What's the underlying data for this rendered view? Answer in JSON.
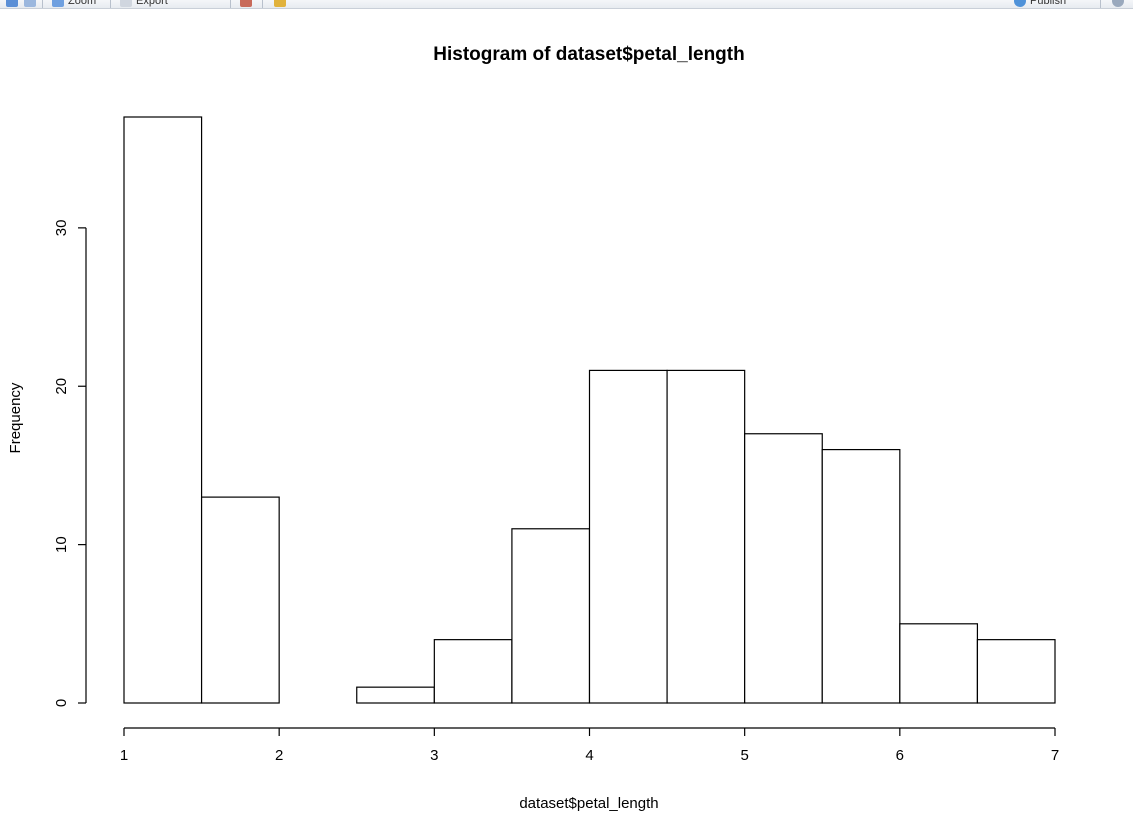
{
  "toolbar": {
    "zoom_label": "Zoom",
    "export_label": "Export",
    "publish_label": "Publish",
    "back_icon": "arrow-left-icon",
    "forward_icon": "arrow-right-icon",
    "zoom_icon": "zoom-icon",
    "export_icon": "export-icon",
    "clear_icon": "clear-icon",
    "broom_icon": "broom-icon",
    "publish_icon": "publish-icon",
    "refresh_icon": "refresh-icon"
  },
  "chart_data": {
    "type": "bar",
    "title": "Histogram of dataset$petal_length",
    "xlabel": "dataset$petal_length",
    "ylabel": "Frequency",
    "bins": [
      {
        "start": 1.0,
        "end": 1.5,
        "count": 37
      },
      {
        "start": 1.5,
        "end": 2.0,
        "count": 13
      },
      {
        "start": 2.0,
        "end": 2.5,
        "count": 0
      },
      {
        "start": 2.5,
        "end": 3.0,
        "count": 1
      },
      {
        "start": 3.0,
        "end": 3.5,
        "count": 4
      },
      {
        "start": 3.5,
        "end": 4.0,
        "count": 11
      },
      {
        "start": 4.0,
        "end": 4.5,
        "count": 21
      },
      {
        "start": 4.5,
        "end": 5.0,
        "count": 21
      },
      {
        "start": 5.0,
        "end": 5.5,
        "count": 17
      },
      {
        "start": 5.5,
        "end": 6.0,
        "count": 16
      },
      {
        "start": 6.0,
        "end": 6.5,
        "count": 5
      },
      {
        "start": 6.5,
        "end": 7.0,
        "count": 4
      }
    ],
    "xticks": [
      1,
      2,
      3,
      4,
      5,
      6,
      7
    ],
    "yticks": [
      0,
      10,
      20,
      30
    ],
    "xlim": [
      1,
      7
    ],
    "ylim": [
      0,
      37
    ],
    "grid": false,
    "legend": "none",
    "bar_fill": "#ffffff",
    "bar_stroke": "#000000"
  }
}
